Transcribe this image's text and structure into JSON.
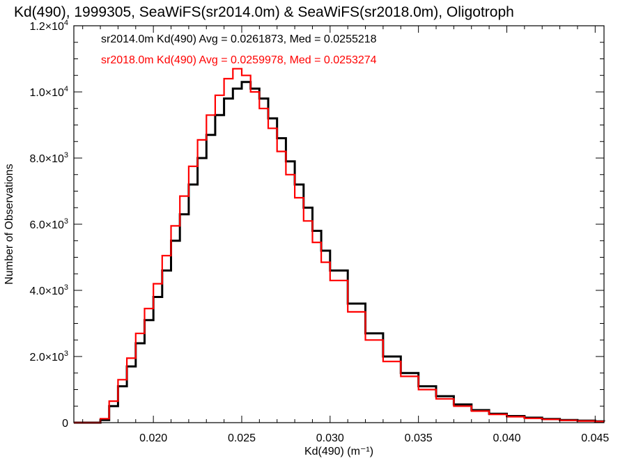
{
  "chart_data": {
    "type": "line",
    "title": "Kd(490), 1999305, SeaWiFS(sr2014.0m) & SeaWiFS(sr2018.0m), Oligotroph",
    "xlabel": "Kd(490) (m⁻¹)",
    "ylabel": "Number of Observations",
    "xlim": [
      0.0155,
      0.0455
    ],
    "ylim": [
      0,
      12000
    ],
    "x_ticks": [
      0.02,
      0.025,
      0.03,
      0.035,
      0.04,
      0.045
    ],
    "x_tick_labels": [
      "0.020",
      "0.025",
      "0.030",
      "0.035",
      "0.040",
      "0.045"
    ],
    "y_ticks": [
      0,
      2000,
      4000,
      6000,
      8000,
      10000,
      12000
    ],
    "y_tick_labels": [
      {
        "mantissa": "0",
        "exp": ""
      },
      {
        "mantissa": "2.0×10",
        "exp": "3"
      },
      {
        "mantissa": "4.0×10",
        "exp": "3"
      },
      {
        "mantissa": "6.0×10",
        "exp": "3"
      },
      {
        "mantissa": "8.0×10",
        "exp": "3"
      },
      {
        "mantissa": "1.0×10",
        "exp": "4"
      },
      {
        "mantissa": "1.2×10",
        "exp": "4"
      }
    ],
    "legend_position": "top-left",
    "grid": false,
    "series": [
      {
        "name": "sr2014.0m",
        "legend_text": "sr2014.0m Kd(490) Avg = 0.0261873, Med = 0.0255218",
        "color": "#000000",
        "x": [
          0.0155,
          0.016,
          0.0165,
          0.017,
          0.0175,
          0.018,
          0.0185,
          0.019,
          0.0195,
          0.02,
          0.0205,
          0.021,
          0.0215,
          0.022,
          0.0225,
          0.023,
          0.0235,
          0.024,
          0.0245,
          0.025,
          0.0255,
          0.026,
          0.0265,
          0.027,
          0.0275,
          0.028,
          0.0285,
          0.029,
          0.0295,
          0.03,
          0.031,
          0.032,
          0.033,
          0.034,
          0.035,
          0.036,
          0.037,
          0.038,
          0.039,
          0.04,
          0.041,
          0.042,
          0.043,
          0.044,
          0.045,
          0.0455
        ],
        "y": [
          0,
          0,
          0,
          80,
          500,
          1100,
          1700,
          2400,
          3100,
          3800,
          4600,
          5500,
          6300,
          7200,
          8000,
          8700,
          9300,
          9800,
          10100,
          10300,
          10100,
          9800,
          9200,
          8600,
          7900,
          7200,
          6500,
          5800,
          5200,
          4600,
          3600,
          2700,
          2000,
          1500,
          1100,
          800,
          550,
          380,
          270,
          200,
          150,
          110,
          80,
          60,
          40,
          35
        ]
      },
      {
        "name": "sr2018.0m",
        "legend_text": "sr2018.0m Kd(490) Avg = 0.0259978, Med = 0.0253274",
        "color": "#ff0000",
        "x": [
          0.0155,
          0.016,
          0.0165,
          0.017,
          0.0175,
          0.018,
          0.0185,
          0.019,
          0.0195,
          0.02,
          0.0205,
          0.021,
          0.0215,
          0.022,
          0.0225,
          0.023,
          0.0235,
          0.024,
          0.0245,
          0.025,
          0.0255,
          0.026,
          0.0265,
          0.027,
          0.0275,
          0.028,
          0.0285,
          0.029,
          0.0295,
          0.03,
          0.031,
          0.032,
          0.033,
          0.034,
          0.035,
          0.036,
          0.037,
          0.038,
          0.039,
          0.04,
          0.041,
          0.042,
          0.043,
          0.044,
          0.045,
          0.0455
        ],
        "y": [
          0,
          0,
          0,
          120,
          650,
          1300,
          1950,
          2700,
          3450,
          4200,
          5050,
          5950,
          6850,
          7750,
          8550,
          9300,
          9900,
          10400,
          10700,
          10500,
          10000,
          9500,
          8900,
          8200,
          7500,
          6800,
          6100,
          5450,
          4850,
          4300,
          3350,
          2500,
          1850,
          1400,
          1000,
          720,
          500,
          350,
          250,
          180,
          130,
          100,
          70,
          50,
          35,
          30
        ]
      }
    ]
  }
}
